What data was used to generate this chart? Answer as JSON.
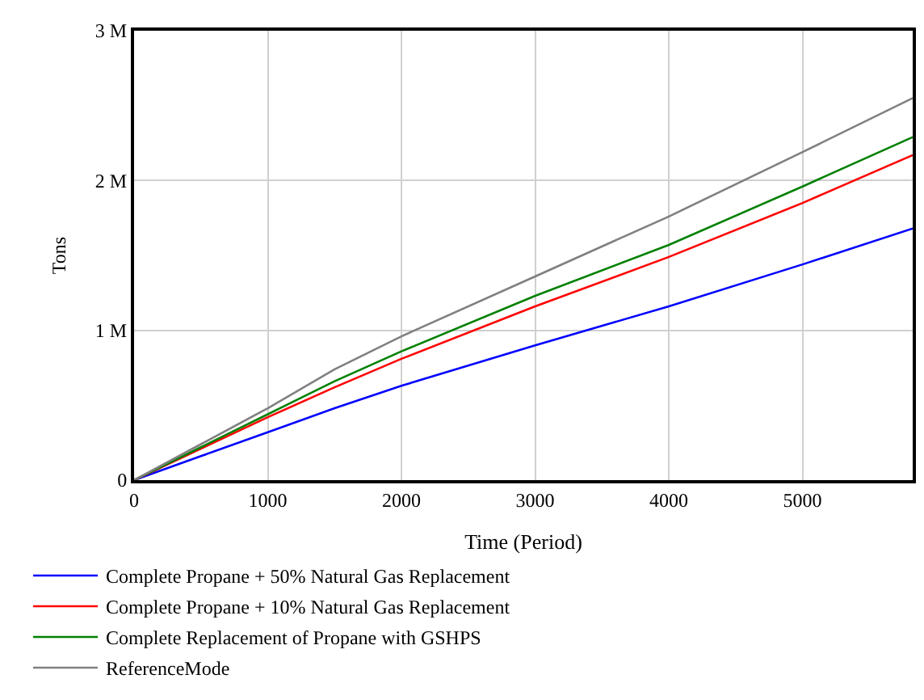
{
  "chart_data": {
    "type": "line",
    "xlabel": "Time (Period)",
    "ylabel": "Tons",
    "x": [
      0,
      500,
      1000,
      1500,
      2000,
      3000,
      4000,
      5000,
      5824
    ],
    "series": [
      {
        "name": "Complete Propane + 50% Natural Gas Replacement",
        "color": "#0000ff",
        "values": [
          0,
          0.16,
          0.32,
          0.48,
          0.63,
          0.9,
          1.16,
          1.44,
          1.68
        ]
      },
      {
        "name": "Complete Propane + 10% Natural Gas Replacement",
        "color": "#ff0000",
        "values": [
          0,
          0.21,
          0.42,
          0.62,
          0.81,
          1.16,
          1.49,
          1.85,
          2.17
        ]
      },
      {
        "name": "Complete Replacement of Propane with GSHPS",
        "color": "#008000",
        "values": [
          0,
          0.22,
          0.44,
          0.66,
          0.86,
          1.23,
          1.57,
          1.96,
          2.29
        ]
      },
      {
        "name": "ReferenceMode",
        "color": "#808080",
        "values": [
          0,
          0.24,
          0.48,
          0.74,
          0.96,
          1.36,
          1.76,
          2.19,
          2.55
        ]
      }
    ],
    "xlim": [
      0,
      5824
    ],
    "xticks": [
      0,
      1000,
      2000,
      3000,
      4000,
      5000
    ],
    "ylim": [
      0,
      3
    ],
    "yticks": [
      0,
      {
        "value": 1,
        "label": "1 M"
      },
      {
        "value": 2,
        "label": "2 M"
      },
      {
        "value": 3,
        "label": "3 M"
      }
    ],
    "grid": true,
    "legend": "bottom",
    "marker": "none",
    "line_style": "solid"
  }
}
